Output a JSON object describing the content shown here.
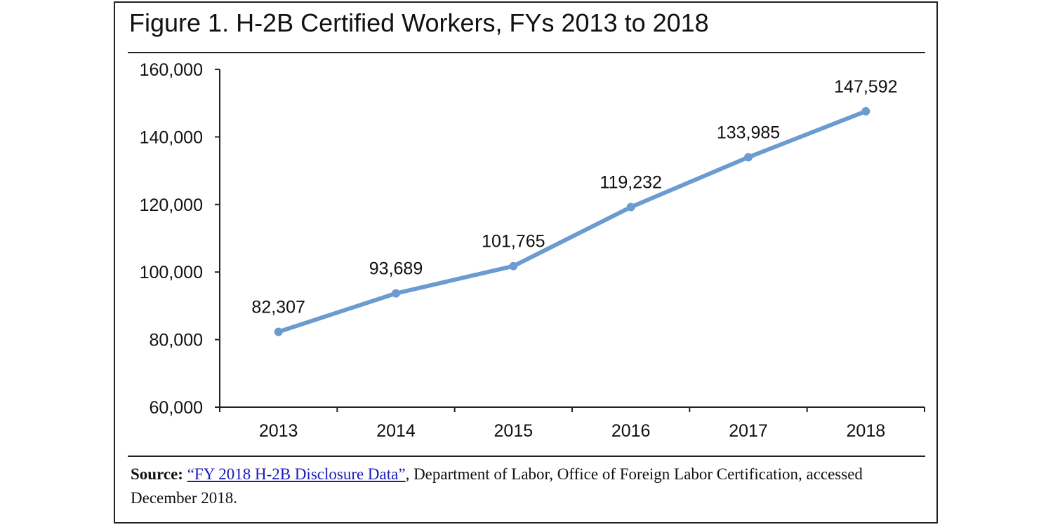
{
  "figure": {
    "title": "Figure 1. H-2B Certified Workers, FYs 2013 to 2018"
  },
  "source": {
    "label": "Source:",
    "link_text": "“FY 2018 H-2B Disclosure Data”",
    "rest": ", Department of Labor, Office of Foreign Labor Certification, accessed December 2018."
  },
  "colors": {
    "line": "#6b9bcf",
    "axis": "#222222",
    "text": "#111111"
  },
  "chart_data": {
    "type": "line",
    "categories": [
      "2013",
      "2014",
      "2015",
      "2016",
      "2017",
      "2018"
    ],
    "series": [
      {
        "values": [
          82307,
          93689,
          101765,
          119232,
          133985,
          147592
        ]
      }
    ],
    "data_labels": [
      "82,307",
      "93,689",
      "101,765",
      "119,232",
      "133,985",
      "147,592"
    ],
    "y_ticks": [
      60000,
      80000,
      100000,
      120000,
      140000,
      160000
    ],
    "y_tick_labels": [
      "60,000",
      "80,000",
      "100,000",
      "120,000",
      "140,000",
      "160,000"
    ],
    "ylim": [
      60000,
      160000
    ],
    "grid": false,
    "legend": "none"
  }
}
